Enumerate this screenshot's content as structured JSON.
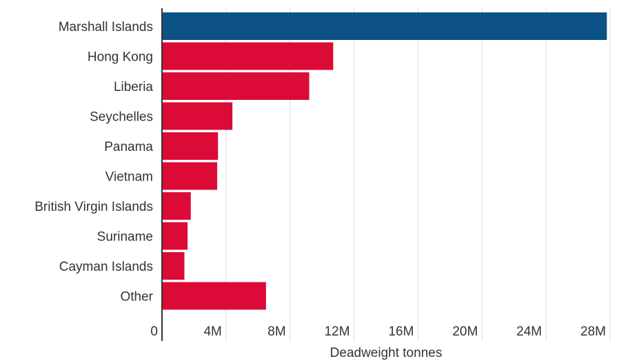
{
  "chart_data": {
    "type": "bar",
    "orientation": "horizontal",
    "categories": [
      "Marshall Islands",
      "Hong Kong",
      "Liberia",
      "Seychelles",
      "Panama",
      "Vietnam",
      "British Virgin Islands",
      "Suriname",
      "Cayman Islands",
      "Other"
    ],
    "values": [
      27800000,
      10700000,
      9200000,
      4400000,
      3500000,
      3450000,
      1800000,
      1600000,
      1400000,
      6500000
    ],
    "bar_colors": [
      "#0d5286",
      "#dc0a36",
      "#dc0a36",
      "#dc0a36",
      "#dc0a36",
      "#dc0a36",
      "#dc0a36",
      "#dc0a36",
      "#dc0a36",
      "#dc0a36"
    ],
    "xlabel": "Deadweight tonnes",
    "ylabel": "",
    "xlim": [
      0,
      28000000
    ],
    "x_ticks": [
      0,
      4000000,
      8000000,
      12000000,
      16000000,
      20000000,
      24000000,
      28000000
    ],
    "x_tick_labels": [
      "0",
      "4M",
      "8M",
      "12M",
      "16M",
      "20M",
      "24M",
      "28M"
    ],
    "grid": true,
    "legend": false
  }
}
